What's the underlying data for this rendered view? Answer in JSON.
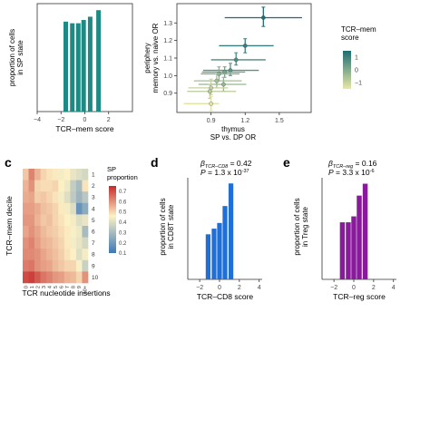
{
  "panel_letters": [
    "c",
    "d",
    "e"
  ],
  "colors": {
    "teal": "#1e8a84",
    "blue": "#1f6fd6",
    "purple": "#8a1a9c",
    "heat_low": "#3d78b7",
    "heat_mid": "#fdf2c6",
    "heat_high": "#c62a2a",
    "tcr_low": "#e9e7a5",
    "tcr_high": "#1d6d74"
  },
  "chart_data": [
    {
      "id": "a",
      "type": "bar",
      "xlabel": "TCR–mem score",
      "ylabel_lines": [
        "proportion of cells",
        "in SP state"
      ],
      "xlim": [
        -4,
        4
      ],
      "xticks": [
        -4,
        -2,
        0,
        2
      ],
      "ylim": [
        0,
        0.66
      ],
      "yticks": [],
      "bar_width": 0.38,
      "x": [
        -1.6,
        -1.05,
        -0.55,
        -0.1,
        0.45,
        1.15
      ],
      "values": [
        0.55,
        0.54,
        0.54,
        0.56,
        0.58,
        0.62
      ]
    },
    {
      "id": "b",
      "type": "scatter",
      "xlabel_lines": [
        "thymus",
        "SP vs. DP OR"
      ],
      "ylabel_lines": [
        "periphery",
        "memory vs. naive OR"
      ],
      "xlim": [
        0.6,
        1.78
      ],
      "ylim": [
        0.79,
        1.41
      ],
      "xticks": [
        0.9,
        1.2,
        1.5
      ],
      "yticks": [
        0.9,
        1.0,
        1.1,
        1.2,
        1.3
      ],
      "legend": {
        "title_lines": [
          "TCR–mem",
          "score"
        ],
        "ticks": [
          1,
          0,
          -1
        ],
        "range": [
          -1.5,
          1.5
        ],
        "position": "right"
      },
      "points": [
        {
          "x": 1.36,
          "y": 1.33,
          "xerr": [
            1.02,
            1.7
          ],
          "yerr": [
            1.28,
            1.39
          ],
          "score": 1.5
        },
        {
          "x": 1.2,
          "y": 1.17,
          "xerr": [
            0.97,
            1.45
          ],
          "yerr": [
            1.13,
            1.21
          ],
          "score": 1.1
        },
        {
          "x": 1.12,
          "y": 1.09,
          "xerr": [
            0.9,
            1.38
          ],
          "yerr": [
            1.06,
            1.13
          ],
          "score": 0.8
        },
        {
          "x": 1.07,
          "y": 1.03,
          "xerr": [
            0.83,
            1.32
          ],
          "yerr": [
            1.0,
            1.07
          ],
          "score": 0.6
        },
        {
          "x": 1.02,
          "y": 1.02,
          "xerr": [
            0.82,
            1.2
          ],
          "yerr": [
            0.99,
            1.05
          ],
          "score": 0.2
        },
        {
          "x": 0.97,
          "y": 1.01,
          "xerr": [
            0.81,
            1.15
          ],
          "yerr": [
            0.97,
            1.05
          ],
          "score": -0.1
        },
        {
          "x": 0.95,
          "y": 0.97,
          "xerr": [
            0.75,
            1.17
          ],
          "yerr": [
            0.93,
            1.01
          ],
          "score": -0.5
        },
        {
          "x": 1.01,
          "y": 0.95,
          "xerr": [
            0.79,
            1.21
          ],
          "yerr": [
            0.91,
            0.99
          ],
          "score": -0.3
        },
        {
          "x": 0.9,
          "y": 0.93,
          "xerr": [
            0.7,
            1.05
          ],
          "yerr": [
            0.89,
            0.98
          ],
          "score": -1.0
        },
        {
          "x": 0.89,
          "y": 0.91,
          "xerr": [
            0.69,
            1.12
          ],
          "yerr": [
            0.87,
            0.95
          ],
          "score": -0.8
        },
        {
          "x": 0.9,
          "y": 0.84,
          "xerr": [
            0.66,
            0.97
          ],
          "yerr": [
            0.8,
            0.88
          ],
          "score": -1.4
        }
      ]
    },
    {
      "id": "c",
      "type": "heatmap",
      "xlabel": "TCR nucleotide insertions",
      "ylabel": "TCR–mem decile",
      "row_labels": [
        "1",
        "2",
        "3",
        "4",
        "5",
        "6",
        "7",
        "8",
        "9",
        "10"
      ],
      "col_labels": [
        "0",
        "1",
        "2",
        "3",
        "4",
        "5",
        "6",
        "7",
        "8",
        "9",
        "10+"
      ],
      "legend": {
        "title_lines": [
          "SP",
          "proportion"
        ],
        "ticks": [
          0.7,
          0.6,
          0.5,
          0.4,
          0.3,
          0.2,
          0.1
        ],
        "range": [
          0.1,
          0.75
        ]
      },
      "values": [
        [
          0.52,
          0.62,
          0.55,
          0.5,
          0.48,
          0.47,
          0.44,
          0.46,
          0.42,
          0.4,
          0.38
        ],
        [
          0.55,
          0.6,
          0.5,
          0.49,
          0.49,
          0.5,
          0.46,
          0.43,
          0.35,
          0.3,
          0.48
        ],
        [
          0.56,
          0.57,
          0.51,
          0.52,
          0.5,
          0.48,
          0.44,
          0.4,
          0.34,
          0.28,
          0.33
        ],
        [
          0.58,
          0.58,
          0.56,
          0.53,
          0.52,
          0.5,
          0.47,
          0.44,
          0.4,
          0.18,
          0.25
        ],
        [
          0.59,
          0.59,
          0.55,
          0.52,
          0.53,
          0.5,
          0.48,
          0.46,
          0.44,
          0.4,
          0.42
        ],
        [
          0.57,
          0.6,
          0.57,
          0.54,
          0.52,
          0.51,
          0.49,
          0.47,
          0.45,
          0.43,
          0.3
        ],
        [
          0.6,
          0.62,
          0.58,
          0.55,
          0.54,
          0.52,
          0.5,
          0.47,
          0.44,
          0.42,
          0.38
        ],
        [
          0.61,
          0.61,
          0.6,
          0.57,
          0.55,
          0.53,
          0.51,
          0.48,
          0.46,
          0.4,
          0.44
        ],
        [
          0.63,
          0.64,
          0.6,
          0.58,
          0.57,
          0.54,
          0.52,
          0.5,
          0.5,
          0.45,
          0.36
        ],
        [
          0.7,
          0.72,
          0.68,
          0.64,
          0.62,
          0.59,
          0.58,
          0.55,
          0.54,
          0.5,
          0.6
        ]
      ]
    },
    {
      "id": "d",
      "type": "bar",
      "annotation_beta": "β",
      "annotation_beta_sub": "TCR–CD8",
      "annotation_beta_value": "= 0.42",
      "annotation_p": "P",
      "annotation_p_value": "= 1.3 x 10",
      "annotation_p_exp": "-37",
      "xlabel": "TCR–CD8 score",
      "ylabel_lines": [
        "proportion of cells",
        "in CD8T state"
      ],
      "xlim": [
        -3.2,
        4.3
      ],
      "xticks": [
        -2,
        0,
        2,
        4
      ],
      "ylim": [
        0.22,
        0.74
      ],
      "yticks": [],
      "bar_width": 0.48,
      "x": [
        -1.15,
        -0.55,
        0.0,
        0.55,
        1.15
      ],
      "values": [
        0.44,
        0.47,
        0.5,
        0.59,
        0.71
      ]
    },
    {
      "id": "e",
      "type": "bar",
      "annotation_beta": "β",
      "annotation_beta_sub": "TCR–reg",
      "annotation_beta_value": "= 0.16",
      "annotation_p": "P",
      "annotation_p_value": "= 3.3 x 10",
      "annotation_p_exp": "-6",
      "xlabel": "TCR–reg score",
      "ylabel_lines": [
        "proportion of cells",
        "in Treg state"
      ],
      "xlim": [
        -3.2,
        4.3
      ],
      "xticks": [
        -2,
        0,
        2,
        4
      ],
      "ylim": [
        0.145,
        0.31
      ],
      "yticks": [],
      "bar_width": 0.5,
      "x": [
        -1.15,
        -0.55,
        0.0,
        0.55,
        1.15
      ],
      "values": [
        0.235,
        0.235,
        0.245,
        0.28,
        0.3
      ]
    }
  ]
}
